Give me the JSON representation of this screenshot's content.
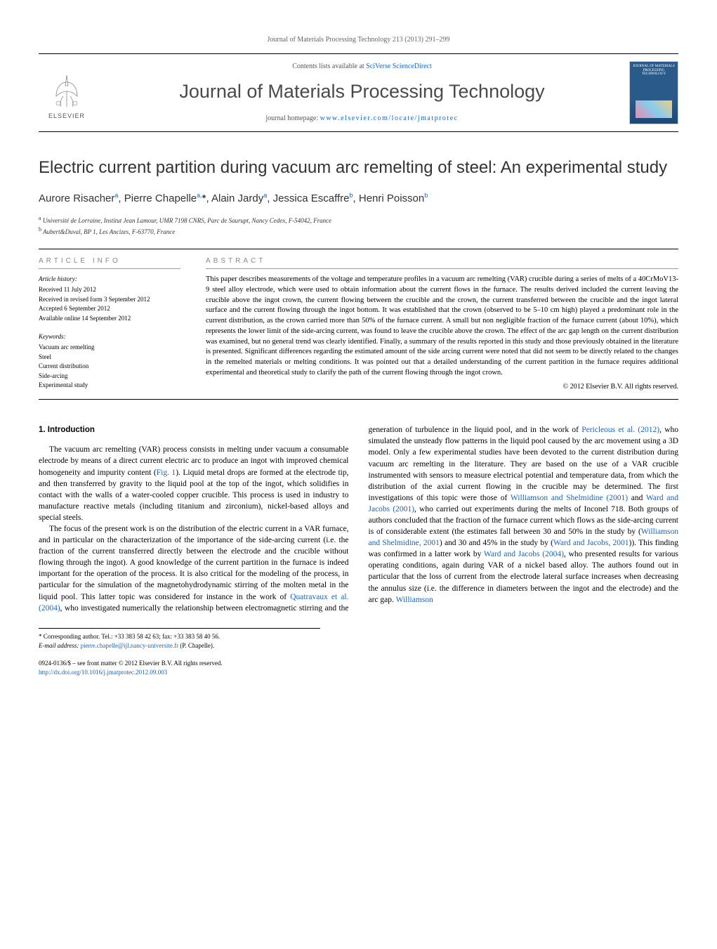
{
  "header": {
    "running": "Journal of Materials Processing Technology 213 (2013) 291–299",
    "contents_prefix": "Contents lists available at ",
    "contents_link": "SciVerse ScienceDirect",
    "journal_name": "Journal of Materials Processing Technology",
    "homepage_prefix": "journal homepage: ",
    "homepage_link": "www.elsevier.com/locate/jmatprotec",
    "publisher": "ELSEVIER",
    "cover_title": "JOURNAL OF MATERIALS PROCESSING TECHNOLOGY"
  },
  "article": {
    "title": "Electric current partition during vacuum arc remelting of steel: An experimental study",
    "authors_html": "Aurore Risacher<sup>a</sup>, Pierre Chapelle<sup>a,</sup><span class=\"asterisk\">*</span>, Alain Jardy<sup>a</sup>, Jessica Escaffre<sup>b</sup>, Henri Poisson<sup>b</sup>",
    "affiliations": [
      "Université de Lorraine, Institut Jean Lamour, UMR 7198 CNRS, Parc de Saurupt, Nancy Cedex, F-54042, France",
      "Aubert&Duval, BP 1, Les Ancizes, F-63770, France"
    ],
    "info_label": "article info",
    "abstract_label": "abstract",
    "history": {
      "label": "Article history:",
      "items": [
        "Received 11 July 2012",
        "Received in revised form 3 September 2012",
        "Accepted 6 September 2012",
        "Available online 14 September 2012"
      ]
    },
    "keywords": {
      "label": "Keywords:",
      "items": [
        "Vacuum arc remelting",
        "Steel",
        "Current distribution",
        "Side-arcing",
        "Experimental study"
      ]
    },
    "abstract": "This paper describes measurements of the voltage and temperature profiles in a vacuum arc remelting (VAR) crucible during a series of melts of a 40CrMoV13-9 steel alloy electrode, which were used to obtain information about the current flows in the furnace. The results derived included the current leaving the crucible above the ingot crown, the current flowing between the crucible and the crown, the current transferred between the crucible and the ingot lateral surface and the current flowing through the ingot bottom. It was established that the crown (observed to be 5–10 cm high) played a predominant role in the current distribution, as the crown carried more than 50% of the furnace current. A small but non negligible fraction of the furnace current (about 10%), which represents the lower limit of the side-arcing current, was found to leave the crucible above the crown. The effect of the arc gap length on the current distribution was examined, but no general trend was clearly identified. Finally, a summary of the results reported in this study and those previously obtained in the literature is presented. Significant differences regarding the estimated amount of the side arcing current were noted that did not seem to be directly related to the changes in the remelted materials or melting conditions. It was pointed out that a detailed understanding of the current partition in the furnace requires additional experimental and theoretical study to clarify the path of the current flowing through the ingot crown.",
    "copyright": "© 2012 Elsevier B.V. All rights reserved."
  },
  "body": {
    "section_number": "1.",
    "section_title": "Introduction",
    "p1": "The vacuum arc remelting (VAR) process consists in melting under vacuum a consumable electrode by means of a direct current electric arc to produce an ingot with improved chemical homogeneity and impurity content (",
    "fig1_ref": "Fig. 1",
    "p1b": "). Liquid metal drops are formed at the electrode tip, and then transferred by gravity to the liquid pool at the top of the ingot, which solidifies in contact with the walls of a water-cooled copper crucible. This process is used in industry to manufacture reactive metals (including titanium and zirconium), nickel-based alloys and special steels.",
    "p2": "The focus of the present work is on the distribution of the electric current in a VAR furnace, and in particular on the characterization of the importance of the side-arcing current (i.e. the fraction of the current transferred directly between the electrode and the crucible without flowing through the ingot). A good knowledge of the current partition in the furnace is indeed important for the operation of the process. It is also critical for the modeling of the process, in particular for the simulation of the magnetohydrodynamic stirring of the molten metal in the liquid pool. This latter topic was",
    "col2a": "considered for instance in the work of ",
    "ref1": "Quatravaux et al. (2004)",
    "col2b": ", who investigated numerically the relationship between electromagnetic stirring and the generation of turbulence in the liquid pool, and in the work of ",
    "ref2": "Pericleous et al. (2012)",
    "col2c": ", who simulated the unsteady flow patterns in the liquid pool caused by the arc movement using a 3D model. Only a few experimental studies have been devoted to the current distribution during vacuum arc remelting in the literature. They are based on the use of a VAR crucible instrumented with sensors to measure electrical potential and temperature data, from which the distribution of the axial current flowing in the crucible may be determined. The first investigations of this topic were those of ",
    "ref3": "Williamson and Shelmidine (2001)",
    "col2d": " and ",
    "ref4": "Ward and Jacobs (2001)",
    "col2e": ", who carried out experiments during the melts of Inconel 718. Both groups of authors concluded that the fraction of the furnace current which flows as the side-arcing current is of considerable extent (the estimates fall between 30 and 50% in the study by (",
    "ref5": "Williamson and Shelmidine, 2001",
    "col2f": ") and 30 and 45% in the study by (",
    "ref6": "Ward and Jacobs, 2001",
    "col2g": ")). This finding was confirmed in a latter work by ",
    "ref7": "Ward and Jacobs (2004)",
    "col2h": ", who presented results for various operating conditions, again during VAR of a nickel based alloy. The authors found out in particular that the loss of current from the electrode lateral surface increases when decreasing the annulus size (i.e. the difference in diameters between the ingot and the electrode) and the arc gap. ",
    "ref8": "Williamson"
  },
  "footnotes": {
    "corresponding": "* Corresponding author. Tel.: +33 383 58 42 63; fax: +33 383 58 40 56.",
    "email_label": "E-mail address: ",
    "email": "pierre.chapelle@ijl.nancy-universite.fr",
    "email_suffix": " (P. Chapelle)."
  },
  "footer": {
    "issn": "0924-0136/$ – see front matter © 2012 Elsevier B.V. All rights reserved.",
    "doi_label": "http://dx.doi.org/",
    "doi": "10.1016/j.jmatprotec.2012.09.003"
  }
}
